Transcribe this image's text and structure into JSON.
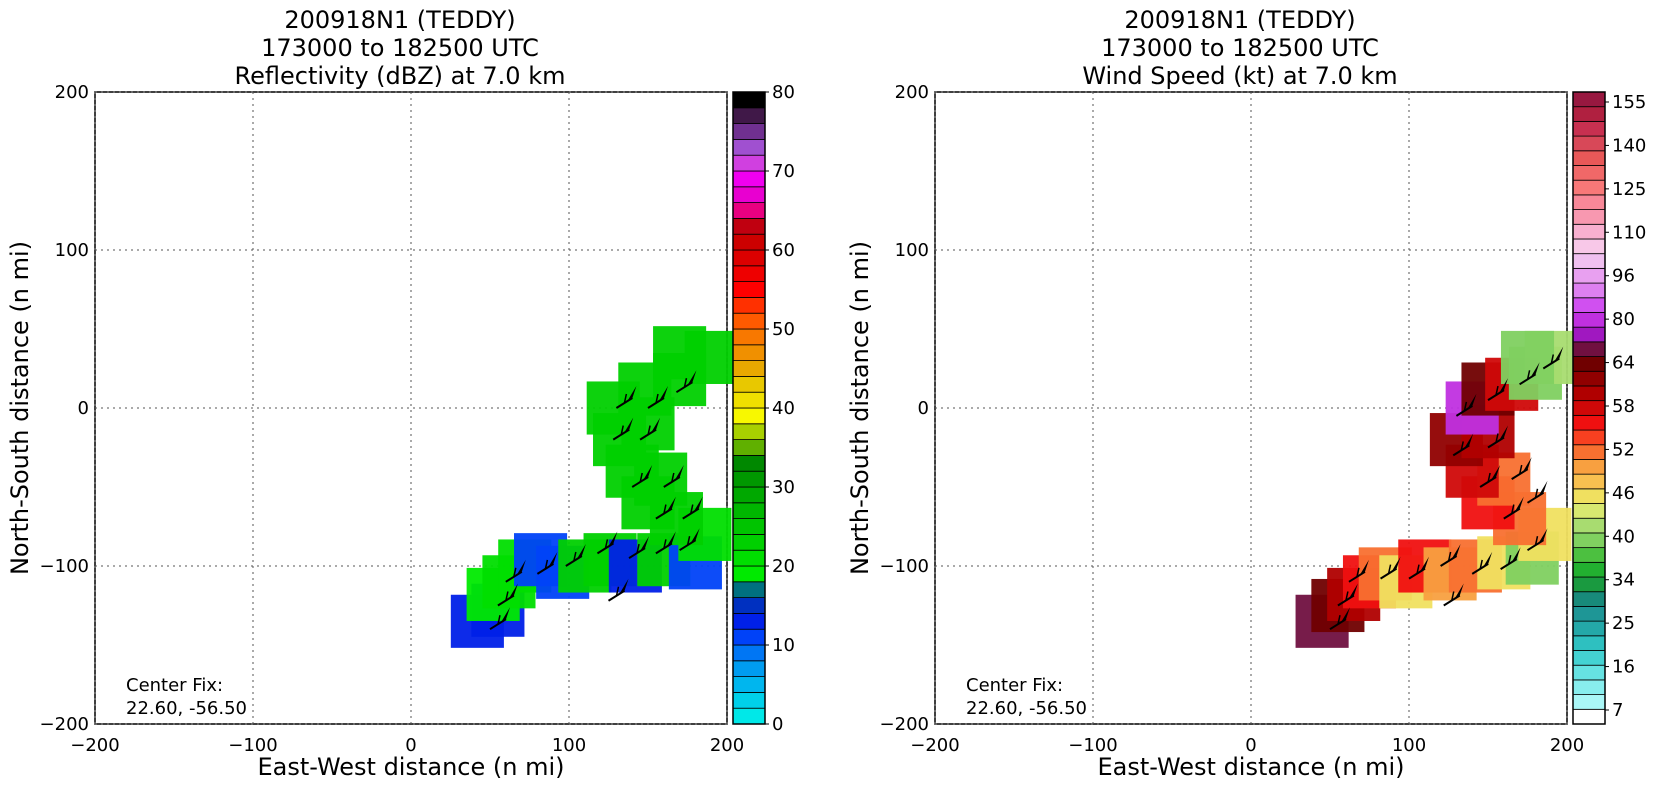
{
  "chart_data": [
    {
      "type": "heatmap",
      "title": [
        "200918N1 (TEDDY)",
        "173000 to 182500 UTC",
        "Reflectivity (dBZ) at 7.0 km"
      ],
      "xlabel": "East-West distance (n mi)",
      "ylabel": "North-South distance (n mi)",
      "xlim": [
        -200,
        200
      ],
      "ylim": [
        -200,
        200
      ],
      "xticks": [
        -200,
        -100,
        0,
        100,
        200
      ],
      "yticks": [
        -200,
        -100,
        0,
        100,
        200
      ],
      "xtick_labels": [
        "−200",
        "−100",
        "0",
        "100",
        "200"
      ],
      "ytick_labels": [
        "−200",
        "−100",
        "0",
        "100",
        "200"
      ],
      "grid": true,
      "annotation": [
        "Center Fix:",
        "22.60, -56.50"
      ],
      "colorbar": {
        "ticks": [
          0,
          10,
          20,
          30,
          40,
          50,
          60,
          70,
          80
        ],
        "tick_labels": [
          "0",
          "10",
          "20",
          "30",
          "40",
          "50",
          "60",
          "70",
          "80"
        ],
        "colors": [
          "#00e8e8",
          "#00d0ea",
          "#00b6ee",
          "#009cf0",
          "#0076f4",
          "#0042f8",
          "#0020e8",
          "#0030c0",
          "#007080",
          "#00ea00",
          "#00de00",
          "#00d000",
          "#00c400",
          "#00b600",
          "#00a800",
          "#009800",
          "#008800",
          "#60b000",
          "#a8d000",
          "#f8f800",
          "#f0e000",
          "#e8c800",
          "#e8a800",
          "#f09000",
          "#f87800",
          "#ff5a00",
          "#ff3000",
          "#ff0000",
          "#ee0000",
          "#dc0000",
          "#cc0000",
          "#c00010",
          "#e80080",
          "#e800d0",
          "#f000f0",
          "#d040e0",
          "#a050d0",
          "#703090",
          "#401848",
          "#000000"
        ]
      },
      "field_cells": [
        {
          "x": 42,
          "y": -135,
          "v": 12
        },
        {
          "x": 55,
          "y": -128,
          "v": 13
        },
        {
          "x": 52,
          "y": -118,
          "v": 18
        },
        {
          "x": 62,
          "y": -110,
          "v": 20
        },
        {
          "x": 72,
          "y": -100,
          "v": 21
        },
        {
          "x": 82,
          "y": -96,
          "v": 10
        },
        {
          "x": 96,
          "y": -104,
          "v": 11
        },
        {
          "x": 110,
          "y": -100,
          "v": 22
        },
        {
          "x": 126,
          "y": -96,
          "v": 22
        },
        {
          "x": 142,
          "y": -100,
          "v": 12
        },
        {
          "x": 160,
          "y": -96,
          "v": 22
        },
        {
          "x": 180,
          "y": -98,
          "v": 11
        },
        {
          "x": 186,
          "y": -80,
          "v": 21
        },
        {
          "x": 168,
          "y": -70,
          "v": 22
        },
        {
          "x": 150,
          "y": -60,
          "v": 23
        },
        {
          "x": 158,
          "y": -45,
          "v": 22
        },
        {
          "x": 140,
          "y": -40,
          "v": 22
        },
        {
          "x": 132,
          "y": -20,
          "v": 22
        },
        {
          "x": 150,
          "y": -10,
          "v": 23
        },
        {
          "x": 128,
          "y": 0,
          "v": 22
        },
        {
          "x": 148,
          "y": 12,
          "v": 22
        },
        {
          "x": 170,
          "y": 18,
          "v": 22
        },
        {
          "x": 190,
          "y": 32,
          "v": 22
        },
        {
          "x": 170,
          "y": 35,
          "v": 23
        }
      ],
      "wind_barbs": [
        {
          "x": 50,
          "y": -140
        },
        {
          "x": 55,
          "y": -125
        },
        {
          "x": 60,
          "y": -110
        },
        {
          "x": 80,
          "y": -105
        },
        {
          "x": 98,
          "y": -100
        },
        {
          "x": 118,
          "y": -92
        },
        {
          "x": 138,
          "y": -95
        },
        {
          "x": 155,
          "y": -92
        },
        {
          "x": 170,
          "y": -90
        },
        {
          "x": 125,
          "y": -122
        },
        {
          "x": 155,
          "y": -70
        },
        {
          "x": 172,
          "y": -70
        },
        {
          "x": 140,
          "y": -50
        },
        {
          "x": 160,
          "y": -50
        },
        {
          "x": 128,
          "y": -20
        },
        {
          "x": 145,
          "y": -20
        },
        {
          "x": 130,
          "y": 0
        },
        {
          "x": 150,
          "y": 0
        },
        {
          "x": 168,
          "y": 10
        }
      ]
    },
    {
      "type": "heatmap",
      "title": [
        "200918N1 (TEDDY)",
        "173000 to 182500 UTC",
        "Wind Speed (kt) at 7.0 km"
      ],
      "xlabel": "East-West distance (n mi)",
      "ylabel": "North-South distance (n mi)",
      "xlim": [
        -200,
        200
      ],
      "ylim": [
        -200,
        200
      ],
      "xticks": [
        -200,
        -100,
        0,
        100,
        200
      ],
      "yticks": [
        -200,
        -100,
        0,
        100,
        200
      ],
      "xtick_labels": [
        "−200",
        "−100",
        "0",
        "100",
        "200"
      ],
      "ytick_labels": [
        "−200",
        "−100",
        "0",
        "100",
        "200"
      ],
      "grid": true,
      "annotation": [
        "Center Fix:",
        "22.60, -56.50"
      ],
      "colorbar": {
        "tick_labels": [
          "7",
          "16",
          "25",
          "34",
          "40",
          "46",
          "52",
          "58",
          "64",
          "80",
          "96",
          "110",
          "125",
          "140",
          "155"
        ],
        "colors": [
          "#ffffff",
          "#aaf7f7",
          "#88eeee",
          "#66e2e2",
          "#44d2d2",
          "#2ec0c0",
          "#24a8a8",
          "#1e9696",
          "#188a7a",
          "#1a9a40",
          "#22b030",
          "#4cc040",
          "#80d060",
          "#a8dc70",
          "#d8e870",
          "#f0e060",
          "#f8c050",
          "#f8a040",
          "#f87030",
          "#f84020",
          "#f01010",
          "#d00808",
          "#b00000",
          "#900000",
          "#700000",
          "#701040",
          "#a018c0",
          "#c030e0",
          "#d050f0",
          "#dd80f0",
          "#e8a0f0",
          "#f0c0f0",
          "#f8c8e8",
          "#f8b0d0",
          "#f898b0",
          "#f88898",
          "#f87878",
          "#f06868",
          "#e85858",
          "#d84858",
          "#c83050",
          "#b02040",
          "#981840"
        ]
      },
      "field_cells": [
        {
          "x": 45,
          "y": -135,
          "v": 70
        },
        {
          "x": 55,
          "y": -125,
          "v": 64
        },
        {
          "x": 65,
          "y": -118,
          "v": 60
        },
        {
          "x": 75,
          "y": -110,
          "v": 55
        },
        {
          "x": 85,
          "y": -105,
          "v": 52
        },
        {
          "x": 98,
          "y": -110,
          "v": 46
        },
        {
          "x": 110,
          "y": -100,
          "v": 55
        },
        {
          "x": 126,
          "y": -105,
          "v": 50
        },
        {
          "x": 142,
          "y": -100,
          "v": 52
        },
        {
          "x": 160,
          "y": -98,
          "v": 46
        },
        {
          "x": 178,
          "y": -95,
          "v": 40
        },
        {
          "x": 186,
          "y": -80,
          "v": 46
        },
        {
          "x": 170,
          "y": -70,
          "v": 52
        },
        {
          "x": 150,
          "y": -60,
          "v": 55
        },
        {
          "x": 160,
          "y": -45,
          "v": 52
        },
        {
          "x": 140,
          "y": -40,
          "v": 58
        },
        {
          "x": 130,
          "y": -20,
          "v": 62
        },
        {
          "x": 150,
          "y": -15,
          "v": 60
        },
        {
          "x": 140,
          "y": 0,
          "v": 80
        },
        {
          "x": 150,
          "y": 12,
          "v": 66
        },
        {
          "x": 165,
          "y": 15,
          "v": 58
        },
        {
          "x": 180,
          "y": 22,
          "v": 40
        },
        {
          "x": 190,
          "y": 32,
          "v": 42
        },
        {
          "x": 175,
          "y": 32,
          "v": 40
        }
      ],
      "wind_barbs": [
        {
          "x": 50,
          "y": -140
        },
        {
          "x": 55,
          "y": -125
        },
        {
          "x": 62,
          "y": -110
        },
        {
          "x": 82,
          "y": -108
        },
        {
          "x": 100,
          "y": -108
        },
        {
          "x": 120,
          "y": -100
        },
        {
          "x": 140,
          "y": -105
        },
        {
          "x": 158,
          "y": -102
        },
        {
          "x": 175,
          "y": -90
        },
        {
          "x": 122,
          "y": -125
        },
        {
          "x": 160,
          "y": -70
        },
        {
          "x": 175,
          "y": -60
        },
        {
          "x": 145,
          "y": -50
        },
        {
          "x": 165,
          "y": -45
        },
        {
          "x": 128,
          "y": -30
        },
        {
          "x": 150,
          "y": -25
        },
        {
          "x": 130,
          "y": -5
        },
        {
          "x": 150,
          "y": 5
        },
        {
          "x": 170,
          "y": 15
        },
        {
          "x": 185,
          "y": 25
        }
      ]
    }
  ]
}
